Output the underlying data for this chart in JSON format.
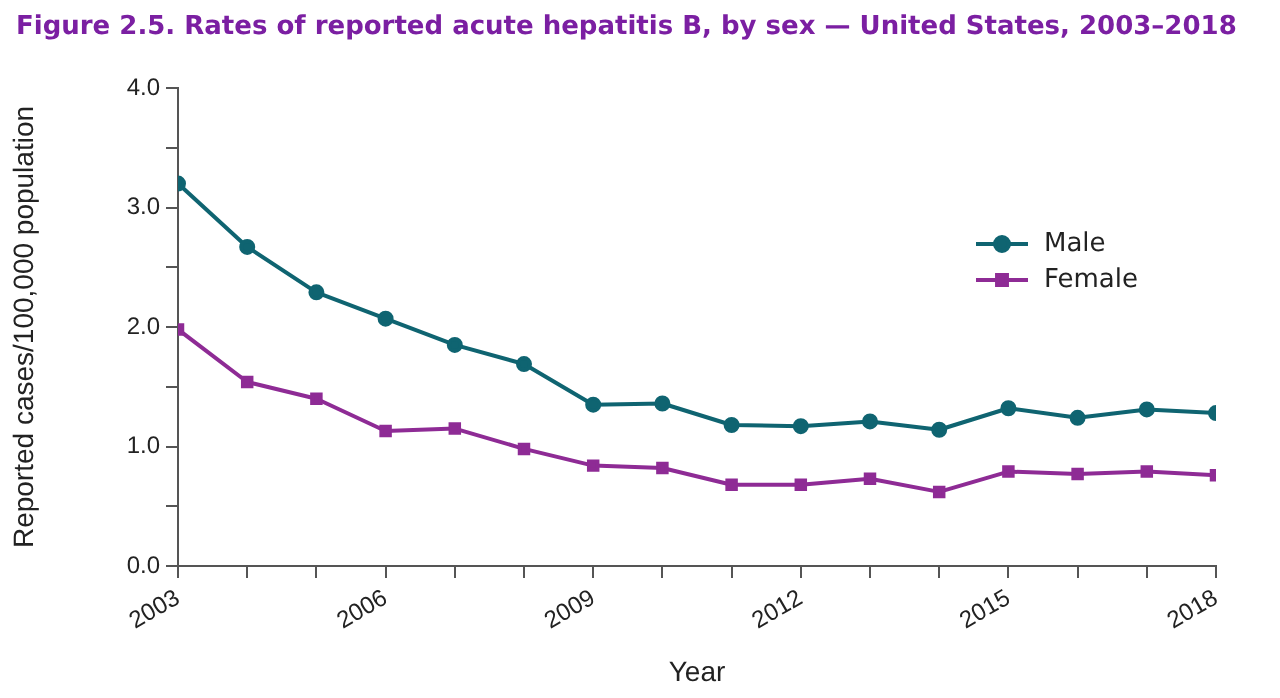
{
  "chart_data": {
    "type": "line",
    "title": "Figure 2.5. Rates of reported acute hepatitis B, by sex — United States, 2003–2018",
    "xlabel": "Year",
    "ylabel": "Reported cases/100,000 population",
    "x": [
      2003,
      2004,
      2005,
      2006,
      2007,
      2008,
      2009,
      2010,
      2011,
      2012,
      2013,
      2014,
      2015,
      2016,
      2017,
      2018
    ],
    "series": [
      {
        "name": "Male",
        "color": "#0f6471",
        "marker": "circle",
        "values": [
          3.2,
          2.67,
          2.29,
          2.07,
          1.85,
          1.69,
          1.35,
          1.36,
          1.18,
          1.17,
          1.21,
          1.14,
          1.32,
          1.24,
          1.31,
          1.28
        ]
      },
      {
        "name": "Female",
        "color": "#8e2b95",
        "marker": "square",
        "values": [
          1.98,
          1.54,
          1.4,
          1.13,
          1.15,
          0.98,
          0.84,
          0.82,
          0.68,
          0.68,
          0.73,
          0.62,
          0.79,
          0.77,
          0.79,
          0.76
        ]
      }
    ],
    "xlim": [
      2003,
      2018
    ],
    "xticks": [
      2003,
      {
        "value": 2004,
        "label": null
      },
      {
        "value": 2005,
        "label": null
      },
      2006,
      {
        "value": 2007,
        "label": null
      },
      {
        "value": 2008,
        "label": null
      },
      2009,
      {
        "value": 2010,
        "label": null
      },
      {
        "value": 2011,
        "label": null
      },
      2012,
      {
        "value": 2013,
        "label": null
      },
      {
        "value": 2014,
        "label": null
      },
      2015,
      {
        "value": 2016,
        "label": null
      },
      {
        "value": 2017,
        "label": null
      },
      2018
    ],
    "ylim": [
      0,
      4
    ],
    "yticks": [
      {
        "value": 0,
        "label": "0.0"
      },
      {
        "value": 0.5,
        "label": null
      },
      {
        "value": 1,
        "label": "1.0"
      },
      {
        "value": 1.5,
        "label": null
      },
      {
        "value": 2,
        "label": "2.0"
      },
      {
        "value": 2.5,
        "label": null
      },
      {
        "value": 3,
        "label": "3.0"
      },
      {
        "value": 3.5,
        "label": null
      },
      {
        "value": 4,
        "label": "4.0"
      }
    ],
    "grid": false,
    "legend": "top right",
    "line_style": "solid"
  }
}
